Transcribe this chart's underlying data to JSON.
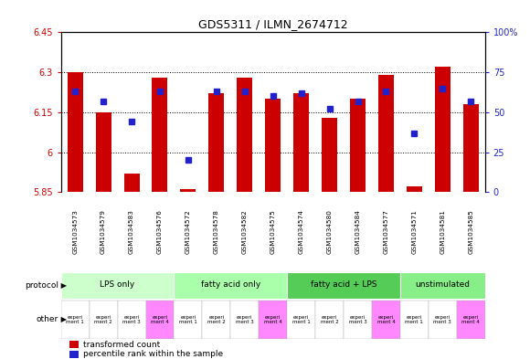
{
  "title": "GDS5311 / ILMN_2674712",
  "samples": [
    "GSM1034573",
    "GSM1034579",
    "GSM1034583",
    "GSM1034576",
    "GSM1034572",
    "GSM1034578",
    "GSM1034582",
    "GSM1034575",
    "GSM1034574",
    "GSM1034580",
    "GSM1034584",
    "GSM1034577",
    "GSM1034571",
    "GSM1034581",
    "GSM1034585"
  ],
  "red_values": [
    6.3,
    6.15,
    5.92,
    6.28,
    5.86,
    6.22,
    6.28,
    6.2,
    6.22,
    6.13,
    6.2,
    6.29,
    5.87,
    6.32,
    6.18
  ],
  "blue_values": [
    63,
    57,
    44,
    63,
    20,
    63,
    63,
    60,
    62,
    52,
    57,
    63,
    37,
    65,
    57
  ],
  "ylim_left": [
    5.85,
    6.45
  ],
  "ylim_right": [
    0,
    100
  ],
  "yticks_left": [
    5.85,
    6.0,
    6.15,
    6.3,
    6.45
  ],
  "yticks_right": [
    0,
    25,
    50,
    75,
    100
  ],
  "ytick_labels_left": [
    "5.85",
    "6",
    "6.15",
    "6.3",
    "6.45"
  ],
  "ytick_labels_right": [
    "0",
    "25",
    "50",
    "75",
    "100%"
  ],
  "hlines": [
    6.0,
    6.15,
    6.3
  ],
  "bar_bottom": 5.85,
  "bar_color": "#cc0000",
  "dot_color": "#2222cc",
  "protocol_groups": [
    {
      "label": "LPS only",
      "indices": [
        0,
        1,
        2,
        3
      ],
      "color": "#ccffcc"
    },
    {
      "label": "fatty acid only",
      "indices": [
        4,
        5,
        6,
        7
      ],
      "color": "#aaffaa"
    },
    {
      "label": "fatty acid + LPS",
      "indices": [
        8,
        9,
        10,
        11
      ],
      "color": "#55cc55"
    },
    {
      "label": "unstimulated",
      "indices": [
        12,
        13,
        14
      ],
      "color": "#88ee88"
    }
  ],
  "other_labels": [
    "experi\nment 1",
    "experi\nment 2",
    "experi\nment 3",
    "experi\nment 4",
    "experi\nment 1",
    "experi\nment 2",
    "experi\nment 3",
    "experi\nment 4",
    "experi\nment 1",
    "experi\nment 2",
    "experi\nment 3",
    "experi\nment 4",
    "experi\nment 1",
    "experi\nment 3",
    "experi\nment 4"
  ],
  "other_colors": [
    "#ffffff",
    "#ffffff",
    "#ffffff",
    "#ff88ff",
    "#ffffff",
    "#ffffff",
    "#ffffff",
    "#ff88ff",
    "#ffffff",
    "#ffffff",
    "#ffffff",
    "#ff88ff",
    "#ffffff",
    "#ffffff",
    "#ff88ff"
  ],
  "bg_color": "#ffffff",
  "tick_label_color_left": "#cc0000",
  "tick_label_color_right": "#2222cc",
  "sample_bg_color": "#cccccc",
  "legend_red_label": "transformed count",
  "legend_blue_label": "percentile rank within the sample"
}
